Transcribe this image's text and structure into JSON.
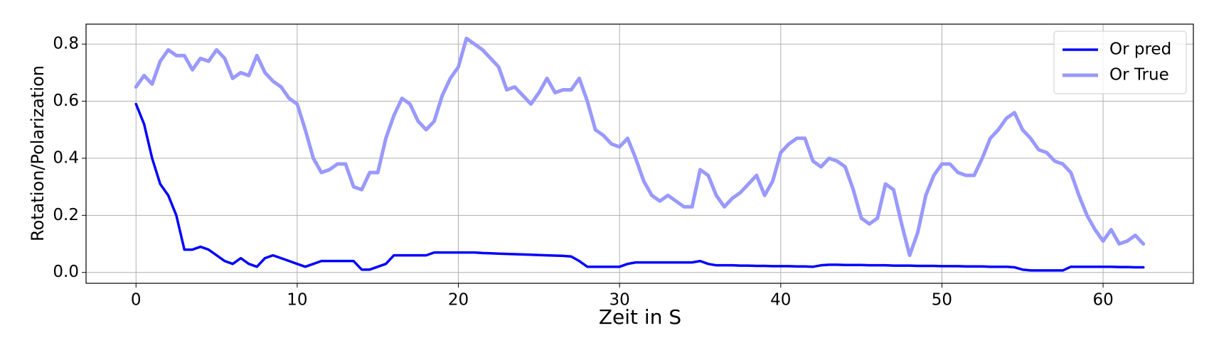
{
  "chart_data": {
    "type": "line",
    "xlabel": "Zeit in S",
    "ylabel": "Rotation/Polarization",
    "x": [
      0,
      0.5,
      1,
      1.5,
      2,
      2.5,
      3,
      3.5,
      4,
      4.5,
      5,
      5.5,
      6,
      6.5,
      7,
      7.5,
      8,
      8.5,
      9,
      9.5,
      10,
      10.5,
      11,
      11.5,
      12,
      12.5,
      13,
      13.5,
      14,
      14.5,
      15,
      15.5,
      16,
      16.5,
      17,
      17.5,
      18,
      18.5,
      19,
      19.5,
      20,
      20.5,
      21,
      21.5,
      22,
      22.5,
      23,
      23.5,
      24,
      24.5,
      25,
      25.5,
      26,
      26.5,
      27,
      27.5,
      28,
      28.5,
      29,
      29.5,
      30,
      30.5,
      31,
      31.5,
      32,
      32.5,
      33,
      33.5,
      34,
      34.5,
      35,
      35.5,
      36,
      36.5,
      37,
      37.5,
      38,
      38.5,
      39,
      39.5,
      40,
      40.5,
      41,
      41.5,
      42,
      42.5,
      43,
      43.5,
      44,
      44.5,
      45,
      45.5,
      46,
      46.5,
      47,
      47.5,
      48,
      48.5,
      49,
      49.5,
      50,
      50.5,
      51,
      51.5,
      52,
      52.5,
      53,
      53.5,
      54,
      54.5,
      55,
      55.5,
      56,
      56.5,
      57,
      57.5,
      58,
      58.5,
      59,
      59.5,
      60,
      60.5,
      61,
      61.5,
      62,
      62.5
    ],
    "series": [
      {
        "name": "Or pred",
        "color": "#0000ff",
        "width": 3.5,
        "values": [
          0.59,
          0.52,
          0.4,
          0.31,
          0.27,
          0.2,
          0.08,
          0.08,
          0.09,
          0.08,
          0.06,
          0.04,
          0.03,
          0.05,
          0.03,
          0.02,
          0.05,
          0.06,
          0.05,
          0.04,
          0.03,
          0.02,
          0.03,
          0.04,
          0.04,
          0.04,
          0.04,
          0.04,
          0.01,
          0.01,
          0.02,
          0.03,
          0.06,
          0.06,
          0.06,
          0.06,
          0.06,
          0.07,
          0.07,
          0.07,
          0.07,
          0.07,
          0.07,
          0.068,
          0.067,
          0.066,
          0.065,
          0.064,
          0.063,
          0.062,
          0.061,
          0.06,
          0.059,
          0.058,
          0.056,
          0.04,
          0.02,
          0.02,
          0.02,
          0.02,
          0.02,
          0.03,
          0.035,
          0.035,
          0.035,
          0.035,
          0.035,
          0.035,
          0.035,
          0.035,
          0.04,
          0.03,
          0.025,
          0.025,
          0.025,
          0.024,
          0.024,
          0.023,
          0.023,
          0.022,
          0.022,
          0.022,
          0.021,
          0.021,
          0.02,
          0.025,
          0.027,
          0.027,
          0.026,
          0.026,
          0.026,
          0.025,
          0.025,
          0.025,
          0.024,
          0.024,
          0.024,
          0.023,
          0.023,
          0.023,
          0.022,
          0.022,
          0.022,
          0.021,
          0.021,
          0.021,
          0.02,
          0.02,
          0.02,
          0.018,
          0.01,
          0.007,
          0.007,
          0.007,
          0.007,
          0.007,
          0.02,
          0.02,
          0.02,
          0.02,
          0.02,
          0.02,
          0.019,
          0.019,
          0.018,
          0.018
        ]
      },
      {
        "name": "Or True",
        "color": "#9999ff",
        "width": 5,
        "values": [
          0.65,
          0.69,
          0.66,
          0.74,
          0.78,
          0.76,
          0.76,
          0.71,
          0.75,
          0.74,
          0.78,
          0.75,
          0.68,
          0.7,
          0.69,
          0.76,
          0.7,
          0.67,
          0.65,
          0.61,
          0.59,
          0.5,
          0.4,
          0.35,
          0.36,
          0.38,
          0.38,
          0.3,
          0.29,
          0.35,
          0.35,
          0.47,
          0.55,
          0.61,
          0.59,
          0.53,
          0.5,
          0.53,
          0.62,
          0.68,
          0.72,
          0.82,
          0.8,
          0.78,
          0.75,
          0.72,
          0.64,
          0.65,
          0.62,
          0.59,
          0.63,
          0.68,
          0.63,
          0.64,
          0.64,
          0.68,
          0.6,
          0.5,
          0.48,
          0.45,
          0.44,
          0.47,
          0.4,
          0.32,
          0.27,
          0.25,
          0.27,
          0.25,
          0.23,
          0.23,
          0.36,
          0.34,
          0.27,
          0.23,
          0.26,
          0.28,
          0.31,
          0.34,
          0.27,
          0.32,
          0.42,
          0.45,
          0.47,
          0.47,
          0.39,
          0.37,
          0.4,
          0.39,
          0.37,
          0.29,
          0.19,
          0.17,
          0.19,
          0.31,
          0.29,
          0.17,
          0.06,
          0.14,
          0.27,
          0.34,
          0.38,
          0.38,
          0.35,
          0.34,
          0.34,
          0.4,
          0.47,
          0.5,
          0.54,
          0.56,
          0.5,
          0.47,
          0.43,
          0.42,
          0.39,
          0.38,
          0.35,
          0.27,
          0.2,
          0.15,
          0.11,
          0.15,
          0.1,
          0.11,
          0.13,
          0.1
        ]
      }
    ],
    "xlim": [
      -3.1,
      65.6
    ],
    "ylim": [
      -0.038,
      0.87
    ],
    "xticks": [
      0,
      10,
      20,
      30,
      40,
      50,
      60
    ],
    "yticks": [
      {
        "value": 0,
        "label": "0.0"
      },
      0.2,
      0.4,
      0.6,
      0.8
    ],
    "grid": true,
    "legend": "upper right"
  }
}
